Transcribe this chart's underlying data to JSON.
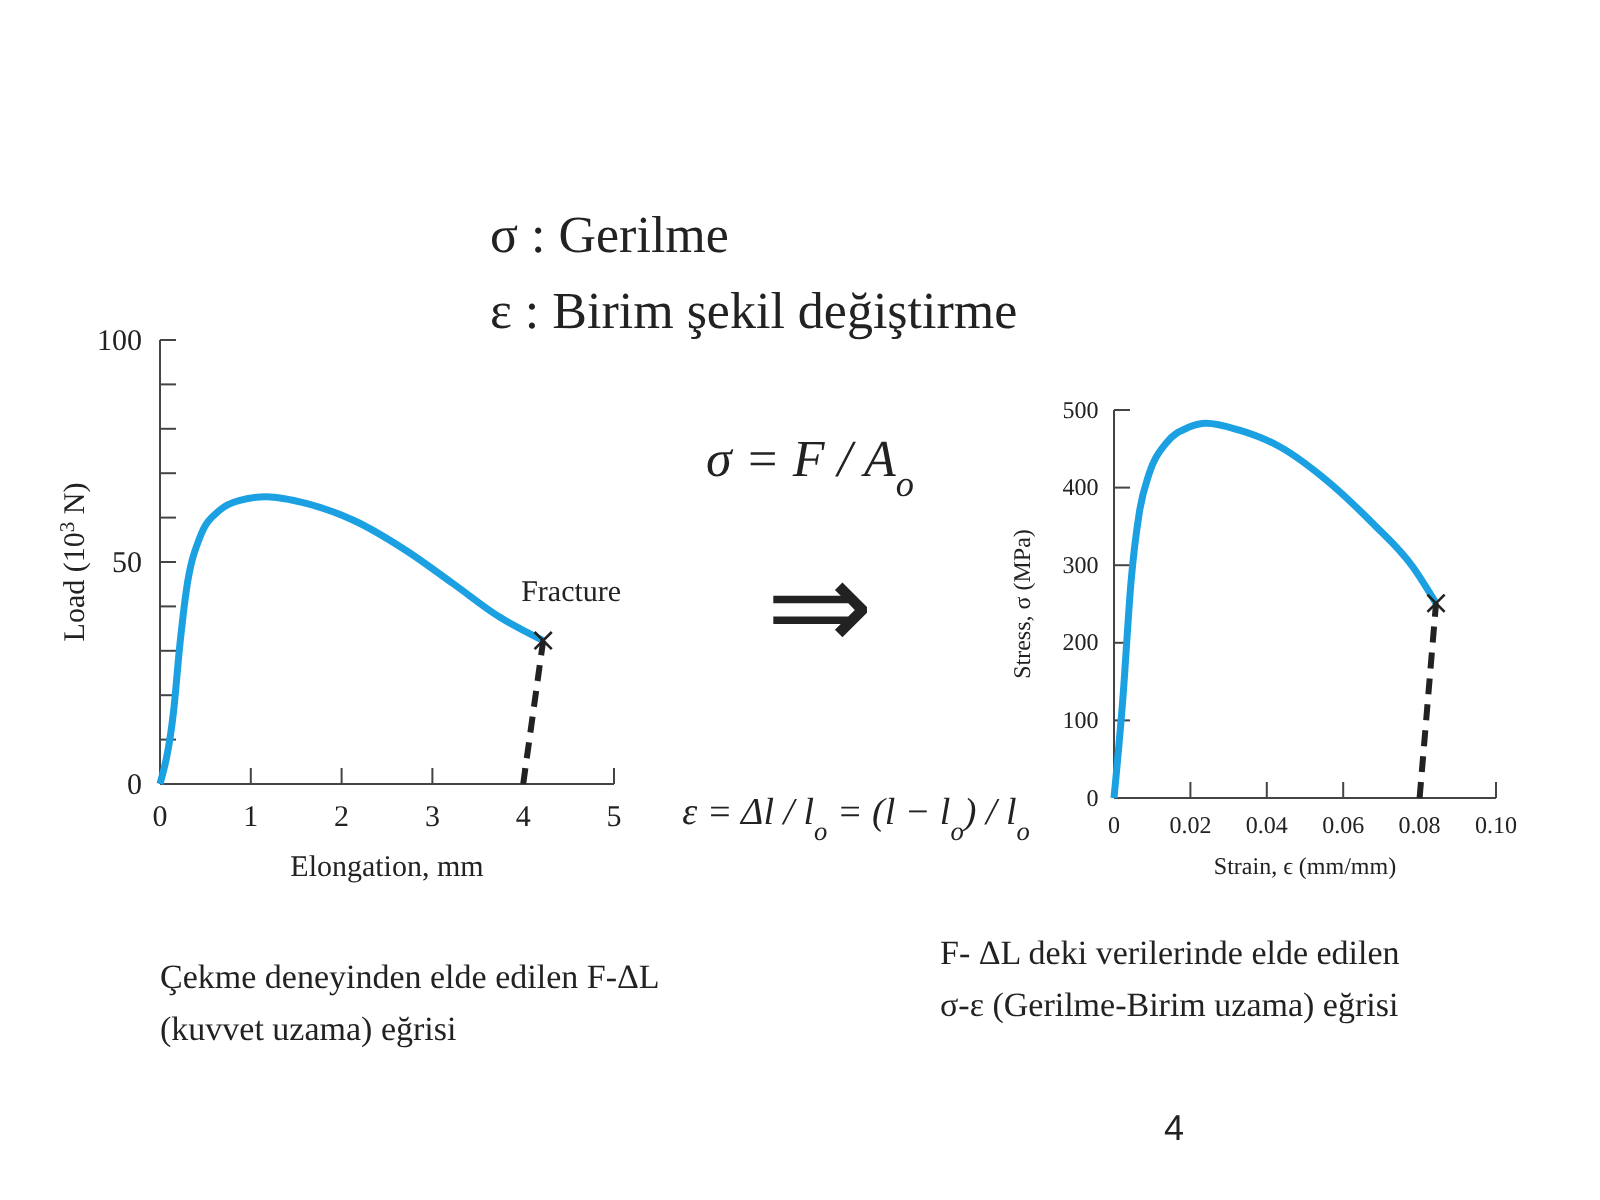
{
  "chart_data": [
    {
      "type": "line",
      "xlabel": "Elongation, mm",
      "ylabel": "Load (10$^{3}$ N)",
      "xlim": [
        0,
        5
      ],
      "ylim": [
        0,
        100
      ],
      "xticks": [
        0,
        1,
        2,
        3,
        4,
        5
      ],
      "yticks": [
        0,
        {
          "value": 10,
          "label": null
        },
        {
          "value": 20,
          "label": null
        },
        {
          "value": 30,
          "label": null
        },
        {
          "value": 40,
          "label": null
        },
        50,
        {
          "value": 60,
          "label": null
        },
        {
          "value": 70,
          "label": null
        },
        {
          "value": 80,
          "label": null
        },
        {
          "value": 90,
          "label": null
        },
        100
      ],
      "series": [
        {
          "type": "line",
          "color": "#1ba1e2",
          "x": [
            0,
            0.15,
            0.22,
            0.29,
            0.44,
            0.66,
            0.88,
            1.17,
            1.61,
            2.13,
            2.71,
            3.23,
            3.74,
            4.22
          ],
          "values": [
            0,
            16.5,
            31.6,
            43.6,
            55.6,
            61.7,
            63.9,
            64.7,
            63.2,
            59.4,
            52.6,
            45.1,
            37.6,
            32.3
          ]
        },
        {
          "type": "line",
          "color": "#222222",
          "line_style": "dashed",
          "x": [
            4.0,
            4.22
          ],
          "values": [
            0,
            32.3
          ]
        },
        {
          "type": "scatter",
          "color": "#222222",
          "marker": "cross",
          "x": [
            4.22
          ],
          "values": [
            32.3
          ]
        }
      ],
      "annotations": [
        {
          "text": "Fracture",
          "x": 4.22,
          "y": 32.3
        },
        "Çekme deneyinden elde edilen F-ΔL (kuvvet uzama) eğrisi"
      ]
    },
    {
      "type": "line",
      "xlabel": "Strain, ϵ (mm/mm)",
      "ylabel": "Stress, σ (MPa)",
      "xlim": [
        0,
        0.1
      ],
      "ylim": [
        0,
        500
      ],
      "xticks": [
        0,
        0.02,
        0.04,
        0.06,
        0.08,
        {
          "value": 0.1,
          "label": "0.10"
        }
      ],
      "yticks": [
        0,
        100,
        200,
        300,
        400,
        500
      ],
      "series": [
        {
          "type": "line",
          "color": "#1ba1e2",
          "x": [
            0,
            0.0023,
            0.0045,
            0.0066,
            0.0092,
            0.0136,
            0.0197,
            0.0241,
            0.0328,
            0.0433,
            0.0555,
            0.0677,
            0.0782,
            0.0843
          ],
          "values": [
            0,
            127,
            281,
            367,
            418,
            457,
            478,
            483,
            474,
            453,
            410,
            354,
            298,
            251
          ]
        },
        {
          "type": "line",
          "color": "#222222",
          "line_style": "dashed",
          "x": [
            0.08,
            0.0843
          ],
          "values": [
            0,
            251
          ]
        },
        {
          "type": "scatter",
          "color": "#222222",
          "marker": "cross",
          "x": [
            0.0843
          ],
          "values": [
            251
          ]
        }
      ],
      "annotations": [
        "F- ΔL deki verilerinde elde edilen σ-ε (Gerilme-Birim uzama) eğrisi"
      ]
    },
    {
      "type": "other",
      "annotations": [
        "σ : Gerilme",
        "ε  : Birim şekil değiştirme",
        "σ = F / A$_{o}$",
        "⇒",
        "ε = Δl / l$_{o}$ = (l − l$_{o}$) / l$_{o}$",
        "4"
      ]
    }
  ]
}
